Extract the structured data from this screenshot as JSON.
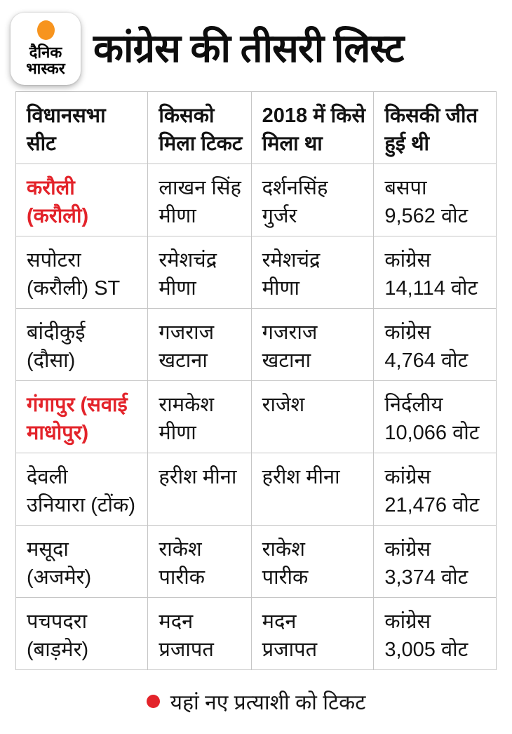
{
  "brand": {
    "name_line1": "दैनिक",
    "name_line2": "भास्कर"
  },
  "header": {
    "title": "कांग्रेस की तीसरी लिस्ट"
  },
  "chart_data": {
    "type": "table",
    "title": "कांग्रेस की तीसरी लिस्ट",
    "columns": [
      "विधानसभा\nसीट",
      "किसको\nमिला टिकट",
      "2018 में किसे\nमिला था",
      "किसकी जीत\nहुई थी"
    ],
    "rows": [
      [
        "करौली\n(करौली)",
        "लाखन सिंह\nमीणा",
        "दर्शनसिंह\nगुर्जर",
        "बसपा\n9,562 वोट"
      ],
      [
        "सपोटरा\n(करौली) ST",
        "रमेशचंद्र\nमीणा",
        "रमेशचंद्र\nमीणा",
        "कांग्रेस\n14,114 वोट"
      ],
      [
        "बांदीकुई\n(दौसा)",
        "गजराज\nखटाना",
        "गजराज\nखटाना",
        "कांग्रेस\n4,764 वोट"
      ],
      [
        "गंगापुर (सवाई\nमाधोपुर)",
        "रामकेश\nमीणा",
        "राजेश",
        "निर्दलीय\n10,066 वोट"
      ],
      [
        "देवली\nउनियारा (टोंक)",
        "हरीश मीना",
        "हरीश मीना",
        "कांग्रेस\n21,476 वोट"
      ],
      [
        "मसूदा\n(अजमेर)",
        "राकेश\nपारीक",
        "राकेश\nपारीक",
        "कांग्रेस\n3,374 वोट"
      ],
      [
        "पचपदरा\n(बाड़मेर)",
        "मदन\nप्रजापत",
        "मदन\nप्रजापत",
        "कांग्रेस\n3,005 वोट"
      ]
    ],
    "highlight_rows": [
      0,
      3
    ],
    "grid": true,
    "legend_position": "bottom"
  },
  "footer": {
    "note": "यहां नए प्रत्याशी को टिकट"
  },
  "colors": {
    "highlight_red": "#e3232a",
    "logo_orange": "#f7941e",
    "table_border": "#c6c6c6"
  }
}
